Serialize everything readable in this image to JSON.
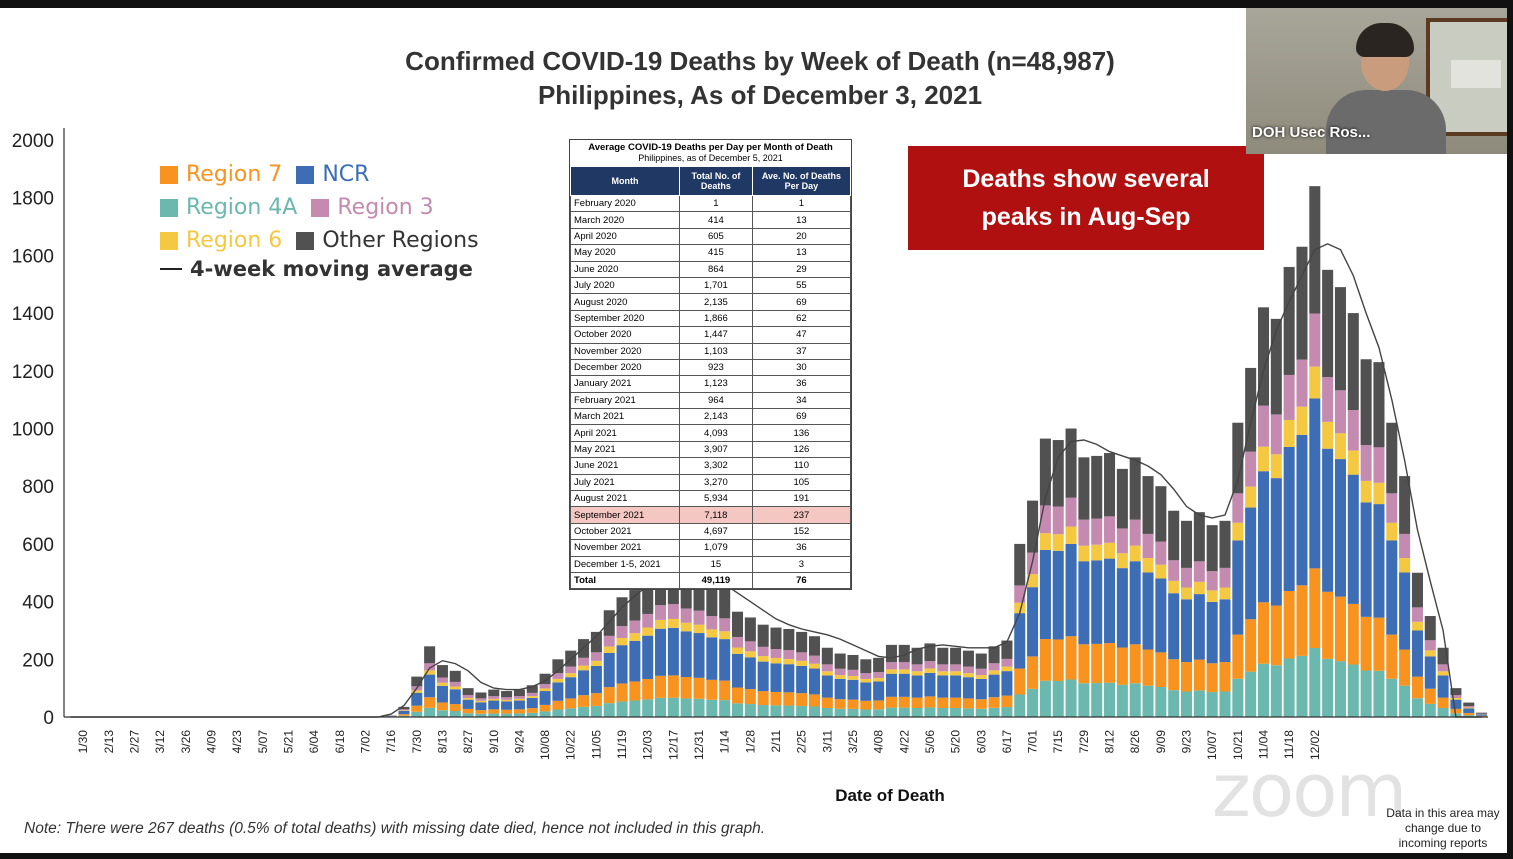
{
  "title_line1": "Confirmed COVID-19 Deaths by Week of Death (n=48,987)",
  "title_line2": "Philippines, As of December 3, 2021",
  "callout": {
    "line1": "Deaths show several",
    "line2": "peaks in Aug-Sep"
  },
  "xaxis_title": "Date of Death",
  "note": "Note: There were 267 deaths (0.5% of total deaths) with missing date died, hence not included in this graph.",
  "disclaimer": "Data in this area may change due to incoming reports",
  "webcam_name": "DOH Usec Ros...",
  "watermark": "zoom",
  "legend": {
    "items": [
      {
        "label": "Region 7",
        "color": "#f7931e"
      },
      {
        "label": "NCR",
        "color": "#3c6db5"
      },
      {
        "label": "Region 4A",
        "color": "#6bb8ae"
      },
      {
        "label": "Region 3",
        "color": "#c48ab0"
      },
      {
        "label": "Region 6",
        "color": "#f5c842"
      },
      {
        "label": "Other Regions",
        "color": "#515151"
      }
    ],
    "moving_average": "4-week moving average"
  },
  "table": {
    "title": "Average COVID-19 Deaths per Day per Month of Death",
    "subtitle": "Philippines, as of December 5, 2021",
    "headers": [
      "Month",
      "Total No. of Deaths",
      "Ave. No. of Deaths Per Day"
    ],
    "rows": [
      [
        "February 2020",
        "1",
        "1"
      ],
      [
        "March 2020",
        "414",
        "13"
      ],
      [
        "April 2020",
        "605",
        "20"
      ],
      [
        "May 2020",
        "415",
        "13"
      ],
      [
        "June 2020",
        "864",
        "29"
      ],
      [
        "July 2020",
        "1,701",
        "55"
      ],
      [
        "August 2020",
        "2,135",
        "69"
      ],
      [
        "September 2020",
        "1,866",
        "62"
      ],
      [
        "October 2020",
        "1,447",
        "47"
      ],
      [
        "November 2020",
        "1,103",
        "37"
      ],
      [
        "December 2020",
        "923",
        "30"
      ],
      [
        "January 2021",
        "1,123",
        "36"
      ],
      [
        "February 2021",
        "964",
        "34"
      ],
      [
        "March 2021",
        "2,143",
        "69"
      ],
      [
        "April 2021",
        "4,093",
        "136"
      ],
      [
        "May 2021",
        "3,907",
        "126"
      ],
      [
        "June 2021",
        "3,302",
        "110"
      ],
      [
        "July 2021",
        "3,270",
        "105"
      ],
      [
        "August 2021",
        "5,934",
        "191"
      ],
      [
        "September 2021",
        "7,118",
        "237"
      ],
      [
        "October 2021",
        "4,697",
        "152"
      ],
      [
        "November 2021",
        "1,079",
        "36"
      ],
      [
        "December 1-5, 2021",
        "15",
        "3"
      ]
    ],
    "highlight_row": "September 2021",
    "total": [
      "Total",
      "49,119",
      "76"
    ]
  },
  "chart_data": {
    "type": "bar",
    "stacked": true,
    "ylim": [
      0,
      2000
    ],
    "yticks": [
      0,
      200,
      400,
      600,
      800,
      1000,
      1200,
      1400,
      1600,
      1800,
      2000
    ],
    "x_tick_labels": [
      "1/30",
      "2/13",
      "2/27",
      "3/12",
      "3/26",
      "4/09",
      "4/23",
      "5/07",
      "5/21",
      "6/04",
      "6/18",
      "7/02",
      "7/16",
      "7/30",
      "8/13",
      "8/27",
      "9/10",
      "9/24",
      "10/08",
      "10/22",
      "11/05",
      "11/19",
      "12/03",
      "12/17",
      "12/31",
      "1/14",
      "1/28",
      "2/11",
      "2/25",
      "3/11",
      "3/25",
      "4/08",
      "4/22",
      "5/06",
      "5/20",
      "6/03",
      "6/17",
      "7/01",
      "7/15",
      "7/29",
      "8/12",
      "8/26",
      "9/09",
      "9/23",
      "10/07",
      "10/21",
      "11/04",
      "11/18",
      "12/02"
    ],
    "totals": [
      0,
      0,
      0,
      0,
      0,
      0,
      0,
      0,
      0,
      0,
      0,
      0,
      0,
      0,
      0,
      0,
      0,
      0,
      0,
      0,
      0,
      0,
      0,
      0,
      0,
      5,
      35,
      140,
      245,
      180,
      160,
      100,
      85,
      95,
      90,
      95,
      110,
      150,
      200,
      230,
      270,
      295,
      370,
      415,
      440,
      470,
      510,
      515,
      495,
      485,
      460,
      450,
      365,
      345,
      320,
      310,
      305,
      295,
      280,
      240,
      220,
      215,
      200,
      205,
      250,
      250,
      240,
      255,
      240,
      240,
      230,
      220,
      245,
      265,
      600,
      750,
      965,
      960,
      1000,
      900,
      905,
      915,
      860,
      900,
      835,
      800,
      715,
      680,
      710,
      665,
      680,
      1020,
      1210,
      1420,
      1380,
      1560,
      1630,
      1840,
      1550,
      1490,
      1400,
      1240,
      1230,
      1020,
      835,
      500,
      350,
      240,
      100,
      50,
      15
    ],
    "series": [
      {
        "name": "Region 4A",
        "share": 0.13
      },
      {
        "name": "Region 7",
        "share": 0.15
      },
      {
        "name": "NCR",
        "share": 0.32
      },
      {
        "name": "Region 6",
        "share": 0.06
      },
      {
        "name": "Region 3",
        "share": 0.1
      },
      {
        "name": "Other Regions",
        "share": 0.24
      }
    ],
    "moving_average": [
      0,
      0,
      0,
      0,
      0,
      0,
      0,
      0,
      0,
      0,
      0,
      0,
      0,
      0,
      0,
      0,
      0,
      0,
      0,
      0,
      0,
      0,
      0,
      0,
      0,
      10,
      40,
      100,
      170,
      195,
      185,
      160,
      120,
      100,
      95,
      95,
      105,
      125,
      160,
      200,
      240,
      280,
      330,
      380,
      420,
      455,
      480,
      495,
      500,
      495,
      480,
      460,
      430,
      400,
      370,
      340,
      320,
      305,
      295,
      285,
      270,
      250,
      230,
      210,
      205,
      215,
      235,
      245,
      250,
      245,
      240,
      240,
      240,
      260,
      360,
      540,
      760,
      900,
      955,
      960,
      945,
      920,
      905,
      890,
      870,
      840,
      790,
      730,
      700,
      690,
      700,
      820,
      1020,
      1200,
      1340,
      1440,
      1530,
      1620,
      1640,
      1620,
      1530,
      1400,
      1280,
      1100,
      890,
      650,
      470,
      300,
      0,
      0,
      0
    ]
  }
}
